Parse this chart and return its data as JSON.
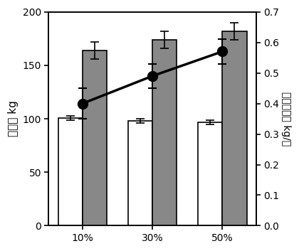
{
  "categories": [
    "10%",
    "30%",
    "50%"
  ],
  "bar_white_values": [
    101,
    98,
    97
  ],
  "bar_white_errors": [
    2,
    2,
    2
  ],
  "bar_gray_values": [
    164,
    174,
    182
  ],
  "bar_gray_errors": [
    8,
    8,
    8
  ],
  "line_values": [
    0.4,
    0.49,
    0.57
  ],
  "line_errors": [
    0.05,
    0.04,
    0.04
  ],
  "bar_width": 0.35,
  "bar_white_color": "#ffffff",
  "bar_gray_color": "#888888",
  "bar_edge_color": "#000000",
  "line_color": "#000000",
  "marker_color": "#000000",
  "ylabel_left": "体重， kg",
  "ylabel_right": "日増体量， kg/日",
  "ylim_left": [
    0,
    200
  ],
  "ylim_right": [
    0,
    0.7
  ],
  "yticks_left": [
    0,
    50,
    100,
    150,
    200
  ],
  "yticks_right": [
    0,
    0.1,
    0.2,
    0.3,
    0.4,
    0.5,
    0.6,
    0.7
  ],
  "background_color": "#ffffff",
  "figsize": [
    4.2,
    3.53
  ],
  "dpi": 100
}
